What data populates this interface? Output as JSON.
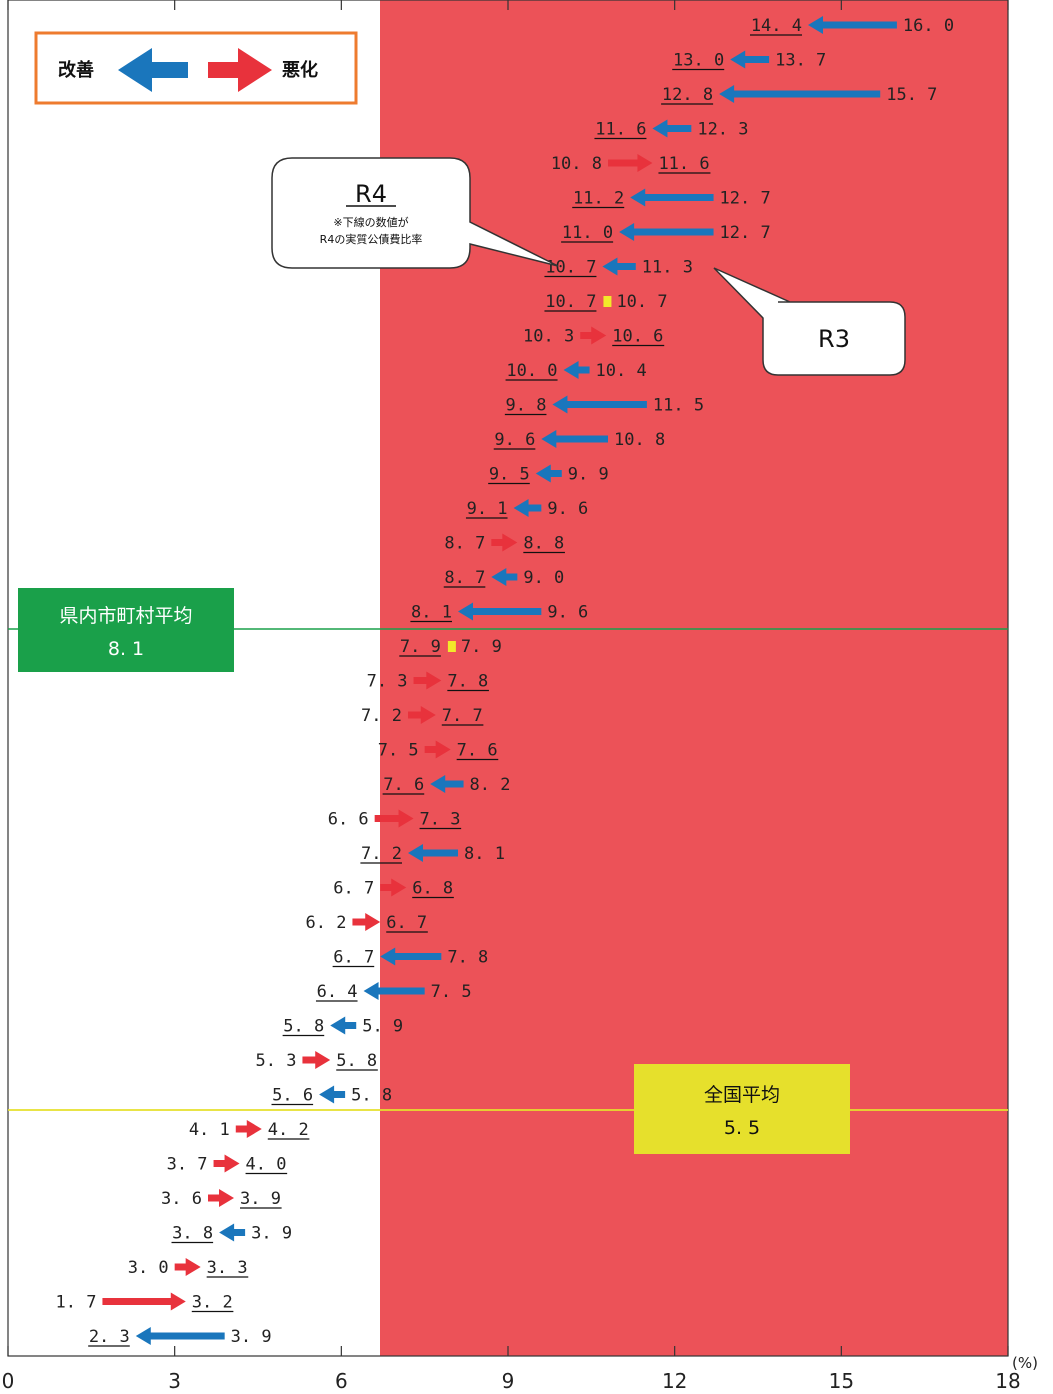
{
  "chart_data": {
    "type": "arrow-change",
    "unit": "(%)",
    "xlim": [
      0,
      18
    ],
    "x_ticks": [
      "0",
      "3",
      "6",
      "9",
      "12",
      "15",
      "18"
    ],
    "legend": {
      "improve": "改善",
      "worsen": "悪化"
    },
    "colors": {
      "improve": "#1a76bc",
      "worsen": "#e8323c",
      "same": "#f2ea2a",
      "bg_start": "#ffffff",
      "bg_end": "#ec5258",
      "prefecture_line": "#1aa04a",
      "national_line": "#e6e02c"
    },
    "callouts": {
      "r4_title": "R4",
      "r4_note1": "※下線の数値が",
      "r4_note2": "R4の実質公債費比率",
      "r3_title": "R3"
    },
    "averages": {
      "prefecture": {
        "name": "県内市町村平均",
        "value": 8.1,
        "value_label": "8. 1"
      },
      "national": {
        "name": "全国平均",
        "value": 5.5,
        "value_label": "5. 5"
      }
    },
    "series": [
      {
        "r3": 16.0,
        "r4": 14.4,
        "r3_label": "16. 0",
        "r4_label": "14. 4"
      },
      {
        "r3": 13.7,
        "r4": 13.0,
        "r3_label": "13. 7",
        "r4_label": "13. 0"
      },
      {
        "r3": 15.7,
        "r4": 12.8,
        "r3_label": "15. 7",
        "r4_label": "12. 8"
      },
      {
        "r3": 12.3,
        "r4": 11.6,
        "r3_label": "12. 3",
        "r4_label": "11. 6"
      },
      {
        "r3": 10.8,
        "r4": 11.6,
        "r3_label": "10. 8",
        "r4_label": "11. 6"
      },
      {
        "r3": 12.7,
        "r4": 11.2,
        "r3_label": "12. 7",
        "r4_label": "11. 2"
      },
      {
        "r3": 12.7,
        "r4": 11.0,
        "r3_label": "12. 7",
        "r4_label": "11. 0"
      },
      {
        "r3": 11.3,
        "r4": 10.7,
        "r3_label": "11. 3",
        "r4_label": "10. 7"
      },
      {
        "r3": 10.7,
        "r4": 10.7,
        "r3_label": "10. 7",
        "r4_label": "10. 7"
      },
      {
        "r3": 10.3,
        "r4": 10.6,
        "r3_label": "10. 3",
        "r4_label": "10. 6"
      },
      {
        "r3": 10.4,
        "r4": 10.0,
        "r3_label": "10. 4",
        "r4_label": "10. 0"
      },
      {
        "r3": 11.5,
        "r4": 9.8,
        "r3_label": "11. 5",
        "r4_label": "9. 8"
      },
      {
        "r3": 10.8,
        "r4": 9.6,
        "r3_label": "10. 8",
        "r4_label": "9. 6"
      },
      {
        "r3": 9.9,
        "r4": 9.5,
        "r3_label": "9. 9",
        "r4_label": "9. 5"
      },
      {
        "r3": 9.6,
        "r4": 9.1,
        "r3_label": "9. 6",
        "r4_label": "9. 1"
      },
      {
        "r3": 8.7,
        "r4": 8.8,
        "r3_label": "8. 7",
        "r4_label": "8. 8"
      },
      {
        "r3": 9.0,
        "r4": 8.7,
        "r3_label": "9. 0",
        "r4_label": "8. 7"
      },
      {
        "r3": 9.6,
        "r4": 8.1,
        "r3_label": "9. 6",
        "r4_label": "8. 1"
      },
      {
        "r3": 7.9,
        "r4": 7.9,
        "r3_label": "7. 9",
        "r4_label": "7. 9"
      },
      {
        "r3": 7.3,
        "r4": 7.8,
        "r3_label": "7. 3",
        "r4_label": "7. 8"
      },
      {
        "r3": 7.2,
        "r4": 7.7,
        "r3_label": "7. 2",
        "r4_label": "7. 7"
      },
      {
        "r3": 7.5,
        "r4": 7.6,
        "r3_label": "7. 5",
        "r4_label": "7. 6"
      },
      {
        "r3": 8.2,
        "r4": 7.6,
        "r3_label": "8. 2",
        "r4_label": "7. 6"
      },
      {
        "r3": 6.6,
        "r4": 7.3,
        "r3_label": "6. 6",
        "r4_label": "7. 3"
      },
      {
        "r3": 8.1,
        "r4": 7.2,
        "r3_label": "8. 1",
        "r4_label": "7. 2"
      },
      {
        "r3": 6.7,
        "r4": 6.8,
        "r3_label": "6. 7",
        "r4_label": "6. 8"
      },
      {
        "r3": 6.2,
        "r4": 6.7,
        "r3_label": "6. 2",
        "r4_label": "6. 7"
      },
      {
        "r3": 7.8,
        "r4": 6.7,
        "r3_label": "7. 8",
        "r4_label": "6. 7"
      },
      {
        "r3": 7.5,
        "r4": 6.4,
        "r3_label": "7. 5",
        "r4_label": "6. 4"
      },
      {
        "r3": 5.9,
        "r4": 5.8,
        "r3_label": "5. 9",
        "r4_label": "5. 8"
      },
      {
        "r3": 5.3,
        "r4": 5.8,
        "r3_label": "5. 3",
        "r4_label": "5. 8"
      },
      {
        "r3": 5.8,
        "r4": 5.6,
        "r3_label": "5. 8",
        "r4_label": "5. 6"
      },
      {
        "r3": 4.1,
        "r4": 4.2,
        "r3_label": "4. 1",
        "r4_label": "4. 2"
      },
      {
        "r3": 3.7,
        "r4": 4.0,
        "r3_label": "3. 7",
        "r4_label": "4. 0"
      },
      {
        "r3": 3.6,
        "r4": 3.9,
        "r3_label": "3. 6",
        "r4_label": "3. 9"
      },
      {
        "r3": 3.9,
        "r4": 3.8,
        "r3_label": "3. 9",
        "r4_label": "3. 8"
      },
      {
        "r3": 3.0,
        "r4": 3.3,
        "r3_label": "3. 0",
        "r4_label": "3. 3"
      },
      {
        "r3": 1.7,
        "r4": 3.2,
        "r3_label": "1. 7",
        "r4_label": "3. 2"
      },
      {
        "r3": 3.9,
        "r4": 2.3,
        "r3_label": "3. 9",
        "r4_label": "2. 3"
      }
    ]
  }
}
